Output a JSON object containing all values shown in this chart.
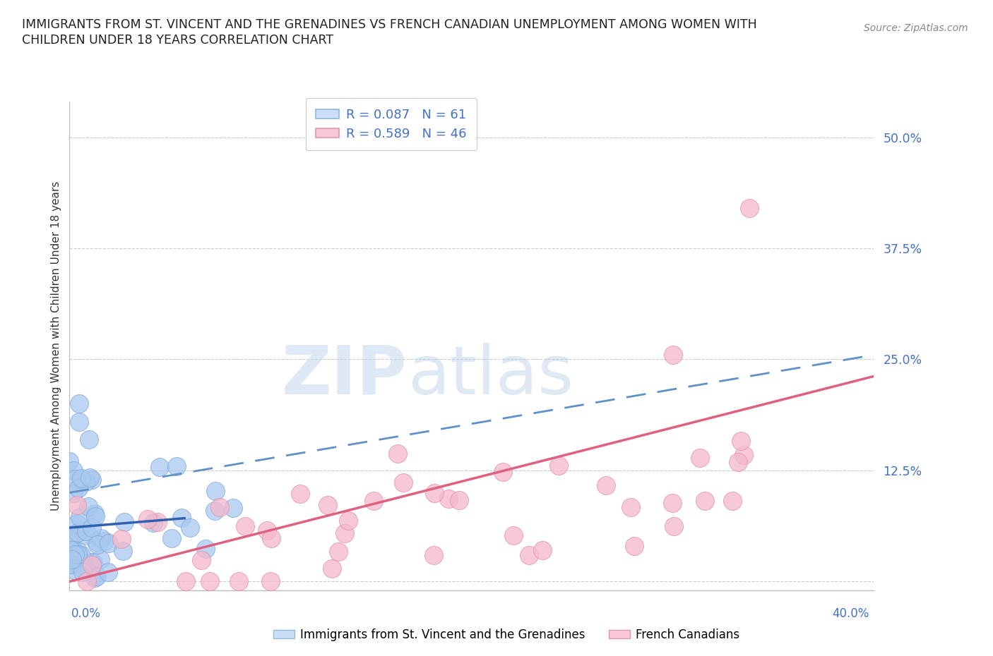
{
  "title_line1": "IMMIGRANTS FROM ST. VINCENT AND THE GRENADINES VS FRENCH CANADIAN UNEMPLOYMENT AMONG WOMEN WITH",
  "title_line2": "CHILDREN UNDER 18 YEARS CORRELATION CHART",
  "source": "Source: ZipAtlas.com",
  "ylabel": "Unemployment Among Women with Children Under 18 years",
  "xlim": [
    0.0,
    0.42
  ],
  "ylim": [
    -0.01,
    0.54
  ],
  "ytick_vals": [
    0.0,
    0.125,
    0.25,
    0.375,
    0.5
  ],
  "ytick_labels": [
    "",
    "12.5%",
    "25.0%",
    "37.5%",
    "50.0%"
  ],
  "blue_dot_color": "#a8c8f0",
  "blue_dot_edge": "#80a8d8",
  "pink_dot_color": "#f5b8cc",
  "pink_dot_edge": "#e090aa",
  "blue_line_color": "#3060b0",
  "blue_dash_color": "#6090c8",
  "pink_line_color": "#e06080",
  "watermark_color": "#ddeeff",
  "grid_color": "#cccccc",
  "background_color": "#ffffff",
  "title_color": "#222222",
  "source_color": "#888888",
  "tick_label_color": "#4472c4",
  "legend_label_color": "#4472c4"
}
